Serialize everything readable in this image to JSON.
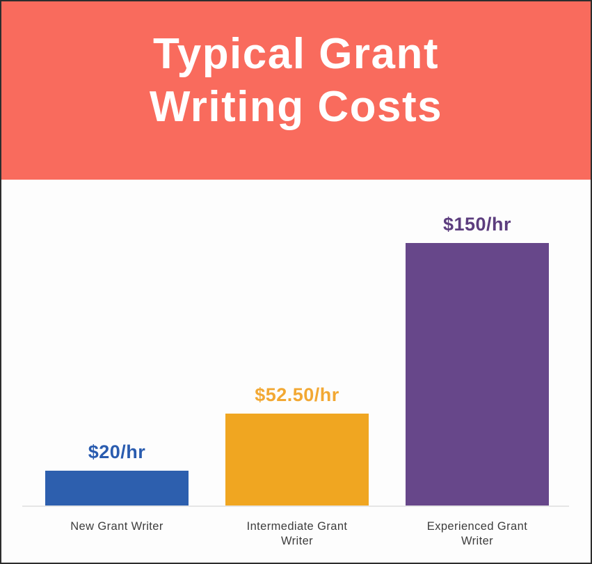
{
  "header": {
    "title_line1": "Typical Grant",
    "title_line2": "Writing Costs",
    "background_color": "#f96b5d",
    "text_color": "#ffffff"
  },
  "chart_data": {
    "type": "bar",
    "title": "Typical Grant Writing Costs",
    "categories": [
      "New Grant Writer",
      "Intermediate Grant Writer",
      "Experienced Grant Writer"
    ],
    "values": [
      20,
      52.5,
      150
    ],
    "value_labels": [
      "$20/hr",
      "$52.50/hr",
      "$150/hr"
    ],
    "ylim": [
      0,
      150
    ],
    "grid": false,
    "legend": false,
    "bar_colors": [
      "#2d5fae",
      "#f0a621",
      "#67478a"
    ],
    "value_label_colors": [
      "#2a5caf",
      "#f2a833",
      "#5c3d7e"
    ],
    "category_label_color": "#3d3d3d",
    "axis_line_color": "#e6e6e6",
    "plot_background_color": "#fdfdfd"
  }
}
